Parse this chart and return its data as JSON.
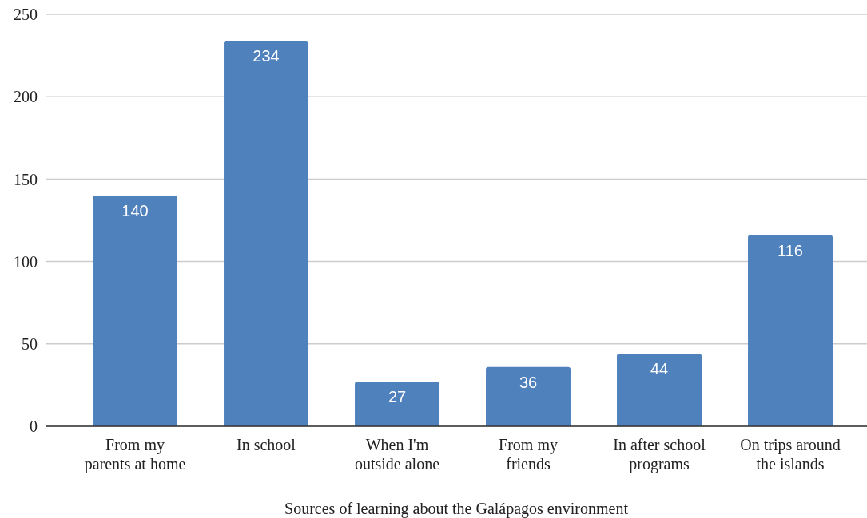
{
  "chart_data": {
    "type": "bar",
    "xlabel": "Sources of learning about the Galápagos environment",
    "categories": [
      "From my parents at home",
      "In school",
      "When I'm outside alone",
      "From my friends",
      "In after school programs",
      "On trips around the islands"
    ],
    "values": [
      140,
      234,
      27,
      36,
      44,
      116
    ],
    "color": "#4f81bd",
    "ylim": [
      0,
      250
    ],
    "yticks": [
      0,
      50,
      100,
      150,
      200,
      250
    ],
    "grid": "y",
    "data_labels": true
  }
}
